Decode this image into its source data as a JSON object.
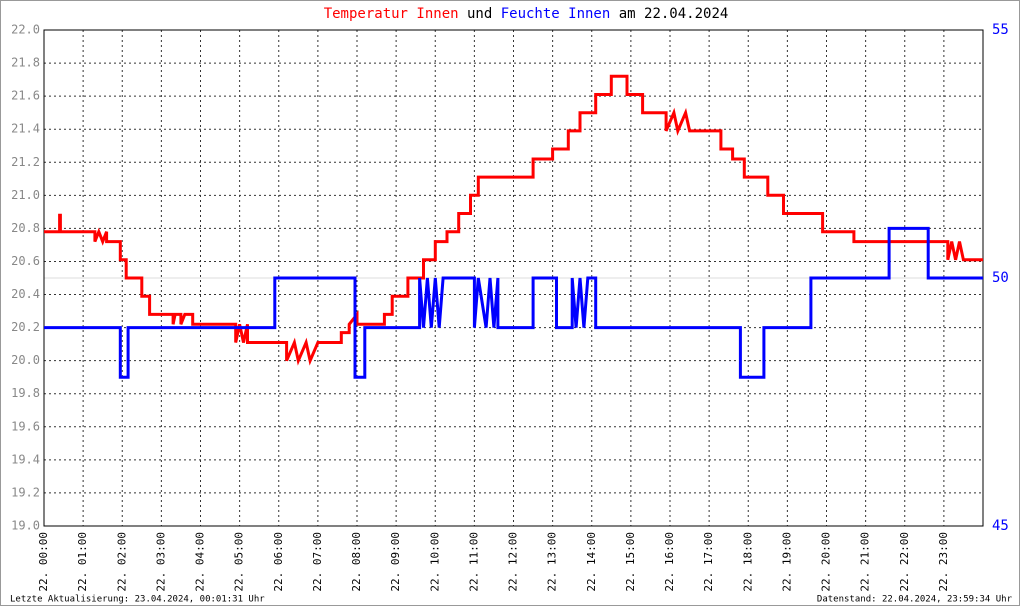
{
  "chart_data": {
    "type": "line",
    "title_joiner": "und",
    "title_suffix": "am 22.04.2024",
    "xlim": [
      0,
      24
    ],
    "xticks": [
      {
        "value": 0,
        "label": "22. 00:00"
      },
      {
        "value": 1,
        "label": "22. 01:00"
      },
      {
        "value": 2,
        "label": "22. 02:00"
      },
      {
        "value": 3,
        "label": "22. 03:00"
      },
      {
        "value": 4,
        "label": "22. 04:00"
      },
      {
        "value": 5,
        "label": "22. 05:00"
      },
      {
        "value": 6,
        "label": "22. 06:00"
      },
      {
        "value": 7,
        "label": "22. 07:00"
      },
      {
        "value": 8,
        "label": "22. 08:00"
      },
      {
        "value": 9,
        "label": "22. 09:00"
      },
      {
        "value": 10,
        "label": "22. 10:00"
      },
      {
        "value": 11,
        "label": "22. 11:00"
      },
      {
        "value": 12,
        "label": "22. 12:00"
      },
      {
        "value": 13,
        "label": "22. 13:00"
      },
      {
        "value": 14,
        "label": "22. 14:00"
      },
      {
        "value": 15,
        "label": "22. 15:00"
      },
      {
        "value": 16,
        "label": "22. 16:00"
      },
      {
        "value": 17,
        "label": "22. 17:00"
      },
      {
        "value": 18,
        "label": "22. 18:00"
      },
      {
        "value": 19,
        "label": "22. 19:00"
      },
      {
        "value": 20,
        "label": "22. 20:00"
      },
      {
        "value": 21,
        "label": "22. 21:00"
      },
      {
        "value": 22,
        "label": "22. 22:00"
      },
      {
        "value": 23,
        "label": "22. 23:00"
      }
    ],
    "ylim": [
      19,
      22
    ],
    "yticks": [
      {
        "value": 19,
        "label": "19.0"
      },
      19.2,
      19.4,
      19.6,
      19.8,
      {
        "value": 20,
        "label": "20.0"
      },
      20.2,
      20.4,
      20.6,
      20.8,
      {
        "value": 21,
        "label": "21.0"
      },
      21.2,
      21.4,
      21.6,
      21.8,
      {
        "value": 22,
        "label": "22.0"
      }
    ],
    "y2lim": [
      45,
      55
    ],
    "y2ticks": [
      45,
      50,
      55
    ],
    "grid": true,
    "series": [
      {
        "name": "Temperatur Innen",
        "color": "#ff0000",
        "x": [
          0,
          0.4,
          0.4,
          0.42,
          0.42,
          1.3,
          1.3,
          1.4,
          1.5,
          1.6,
          1.6,
          1.95,
          1.95,
          2.1,
          2.1,
          2.5,
          2.5,
          2.7,
          2.7,
          3.3,
          3.3,
          3.35,
          3.5,
          3.5,
          3.6,
          3.8,
          3.8,
          4.9,
          4.9,
          5.0,
          5.1,
          5.2,
          5.2,
          6.2,
          6.2,
          6.4,
          6.5,
          6.7,
          6.8,
          7.0,
          7.6,
          7.6,
          7.8,
          7.8,
          8.0,
          8.0,
          8.7,
          8.7,
          8.9,
          8.9,
          9.3,
          9.3,
          9.7,
          9.7,
          10.0,
          10.0,
          10.3,
          10.3,
          10.6,
          10.6,
          10.9,
          10.9,
          11.1,
          11.1,
          12.5,
          12.5,
          13.0,
          13.0,
          13.4,
          13.4,
          13.7,
          13.7,
          14.1,
          14.1,
          14.5,
          14.5,
          14.9,
          14.9,
          15.3,
          15.3,
          15.9,
          15.9,
          16.1,
          16.2,
          16.4,
          16.5,
          17.3,
          17.3,
          17.6,
          17.6,
          17.9,
          17.9,
          18.5,
          18.5,
          18.9,
          18.9,
          19.9,
          19.9,
          20.7,
          20.7,
          23.1,
          23.1,
          23.2,
          23.3,
          23.4,
          23.5,
          24
        ],
        "values": [
          20.78,
          20.78,
          20.88,
          20.88,
          20.78,
          20.78,
          20.72,
          20.78,
          20.72,
          20.78,
          20.72,
          20.72,
          20.61,
          20.61,
          20.5,
          20.5,
          20.39,
          20.39,
          20.28,
          20.28,
          20.22,
          20.28,
          20.28,
          20.22,
          20.28,
          20.28,
          20.22,
          20.22,
          20.11,
          20.22,
          20.11,
          20.22,
          20.11,
          20.11,
          20.0,
          20.11,
          20.0,
          20.11,
          20.0,
          20.11,
          20.11,
          20.17,
          20.17,
          20.22,
          20.28,
          20.22,
          20.22,
          20.28,
          20.28,
          20.39,
          20.39,
          20.5,
          20.5,
          20.61,
          20.61,
          20.72,
          20.72,
          20.78,
          20.78,
          20.89,
          20.89,
          21.0,
          21.0,
          21.11,
          21.11,
          21.22,
          21.22,
          21.28,
          21.28,
          21.39,
          21.39,
          21.5,
          21.5,
          21.61,
          21.61,
          21.72,
          21.72,
          21.61,
          21.61,
          21.5,
          21.5,
          21.39,
          21.5,
          21.39,
          21.5,
          21.39,
          21.39,
          21.28,
          21.28,
          21.22,
          21.22,
          21.11,
          21.11,
          21.0,
          21.0,
          20.89,
          20.89,
          20.78,
          20.78,
          20.72,
          20.72,
          20.61,
          20.72,
          20.61,
          20.72,
          20.61,
          20.61
        ]
      },
      {
        "name": "Feuchte Innen",
        "color": "#0000ff",
        "axis": "y2",
        "x": [
          0,
          1.95,
          1.95,
          2.15,
          2.15,
          5.9,
          5.9,
          7.95,
          7.95,
          8.2,
          8.2,
          9.6,
          9.6,
          9.7,
          9.8,
          9.9,
          10.0,
          10.1,
          10.2,
          11.0,
          11.0,
          11.1,
          11.3,
          11.4,
          11.5,
          11.6,
          11.6,
          12.5,
          12.5,
          13.1,
          13.1,
          13.5,
          13.5,
          13.6,
          13.7,
          13.8,
          13.9,
          14.1,
          14.1,
          17.8,
          17.8,
          18.4,
          18.4,
          19.6,
          19.6,
          21.6,
          21.6,
          22.6,
          22.6,
          24
        ],
        "values": [
          49,
          49,
          48,
          48,
          49,
          49,
          50,
          50,
          48,
          48,
          49,
          49,
          50,
          49,
          50,
          49,
          50,
          49,
          50,
          50,
          49,
          50,
          49,
          50,
          49,
          50,
          49,
          49,
          50,
          50,
          49,
          49,
          50,
          49,
          50,
          49,
          50,
          50,
          49,
          49,
          48,
          48,
          49,
          49,
          50,
          50,
          51,
          51,
          50,
          50
        ]
      }
    ],
    "annotations": [
      "Letzte Aktualisierung: 23.04.2024, 00:01:31 Uhr",
      "Datenstand: 22.04.2024, 23:59:34 Uhr"
    ]
  }
}
